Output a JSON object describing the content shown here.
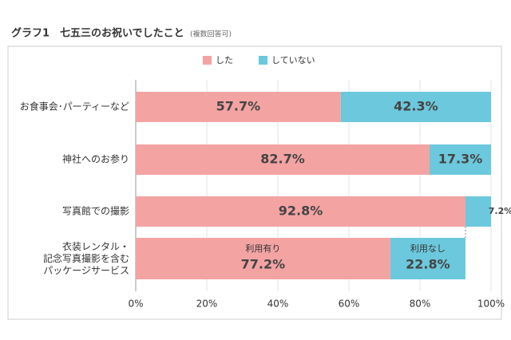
{
  "chart_data": {
    "type": "stacked-bar-horizontal",
    "title": "グラフ1　七五三のお祝いでしたこと",
    "subtitle": "(複数回答可)",
    "categories": [
      "お食事会･パーティーなど",
      "神社へのお参り",
      "写真館での撮影",
      "衣装レンタル・\n記念写真撮影を含む\nパッケージサービス"
    ],
    "series": [
      {
        "name": "した",
        "color": "#f4a3a3",
        "values": [
          57.7,
          82.7,
          92.8,
          77.2
        ],
        "value_labels": [
          "57.7%",
          "82.7%",
          "92.8%",
          "77.2%"
        ]
      },
      {
        "name": "していない",
        "color": "#6cc8dc",
        "values": [
          42.3,
          17.3,
          7.2,
          22.8
        ],
        "value_labels": [
          "42.3%",
          "17.3%",
          "7.2%",
          "22.8%"
        ]
      }
    ],
    "segment_labels": [
      "利用有り",
      "利用なし"
    ],
    "xlim": [
      0,
      100
    ],
    "xticks": [
      {
        "value": 0,
        "label": "0%"
      },
      {
        "value": 20,
        "label": "20%"
      },
      {
        "value": 40,
        "label": "40%"
      },
      {
        "value": 60,
        "label": "60%"
      },
      {
        "value": 80,
        "label": "80%"
      },
      {
        "value": 100,
        "label": "100%"
      }
    ],
    "grid": true,
    "legend": "top"
  }
}
